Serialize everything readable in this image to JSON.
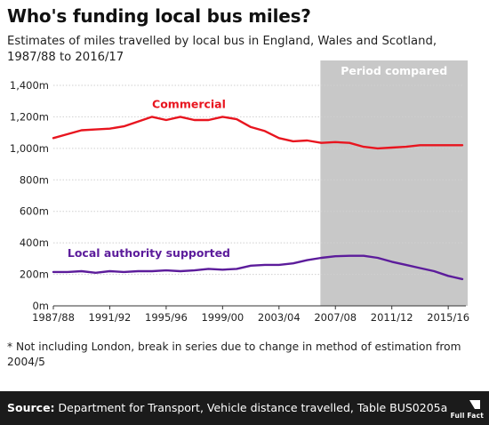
{
  "title": "Who's funding local bus miles?",
  "subtitle": "Estimates of miles travelled by local bus in England, Wales and Scotland, 1987/88 to 2016/17",
  "footnote": "* Not including London, break in series due to change in method of estimation from 2004/5",
  "source_label": "Source:",
  "source_text": "Department for Transport, Vehicle distance travelled, Table BUS0205a",
  "logo_text": "Full Fact",
  "chart_data": {
    "type": "line",
    "x": [
      "1987/88",
      "1988/89",
      "1989/90",
      "1990/91",
      "1991/92",
      "1992/93",
      "1993/94",
      "1994/95",
      "1995/96",
      "1996/97",
      "1997/98",
      "1998/99",
      "1999/00",
      "2000/01",
      "2001/02",
      "2002/03",
      "2003/04",
      "2004/05",
      "2005/06",
      "2006/07",
      "2007/08",
      "2008/09",
      "2009/10",
      "2010/11",
      "2011/12",
      "2012/13",
      "2013/14",
      "2014/15",
      "2015/16",
      "2016/17"
    ],
    "x_tick_labels": [
      "1987/88",
      "1991/92",
      "1995/96",
      "1999/00",
      "2003/04",
      "2007/08",
      "2011/12",
      "2015/16"
    ],
    "y_tick_labels": [
      "0m",
      "200m",
      "400m",
      "600m",
      "800m",
      "1,000m",
      "1,200m",
      "1,400m"
    ],
    "ylim": [
      0,
      1400
    ],
    "grid": true,
    "series": [
      {
        "name": "Commercial",
        "color": "#e8151f",
        "values": [
          1065,
          1090,
          1115,
          1120,
          1125,
          1140,
          1170,
          1200,
          1180,
          1200,
          1180,
          1180,
          1200,
          1185,
          1135,
          1110,
          1065,
          1045,
          1050,
          1035,
          1040,
          1035,
          1010,
          1000,
          1005,
          1010,
          1020,
          1020,
          1020,
          1020
        ]
      },
      {
        "name": "Local authority supported",
        "color": "#5c1c9b",
        "values": [
          215,
          215,
          220,
          210,
          220,
          215,
          220,
          220,
          225,
          220,
          225,
          235,
          230,
          235,
          255,
          260,
          260,
          270,
          290,
          305,
          315,
          318,
          318,
          305,
          280,
          260,
          240,
          220,
          190,
          170
        ]
      }
    ],
    "shaded_region": {
      "label": "Period compared",
      "x_start": "2006/07",
      "x_end": "2016/17",
      "color": "#c8c8c8"
    }
  }
}
